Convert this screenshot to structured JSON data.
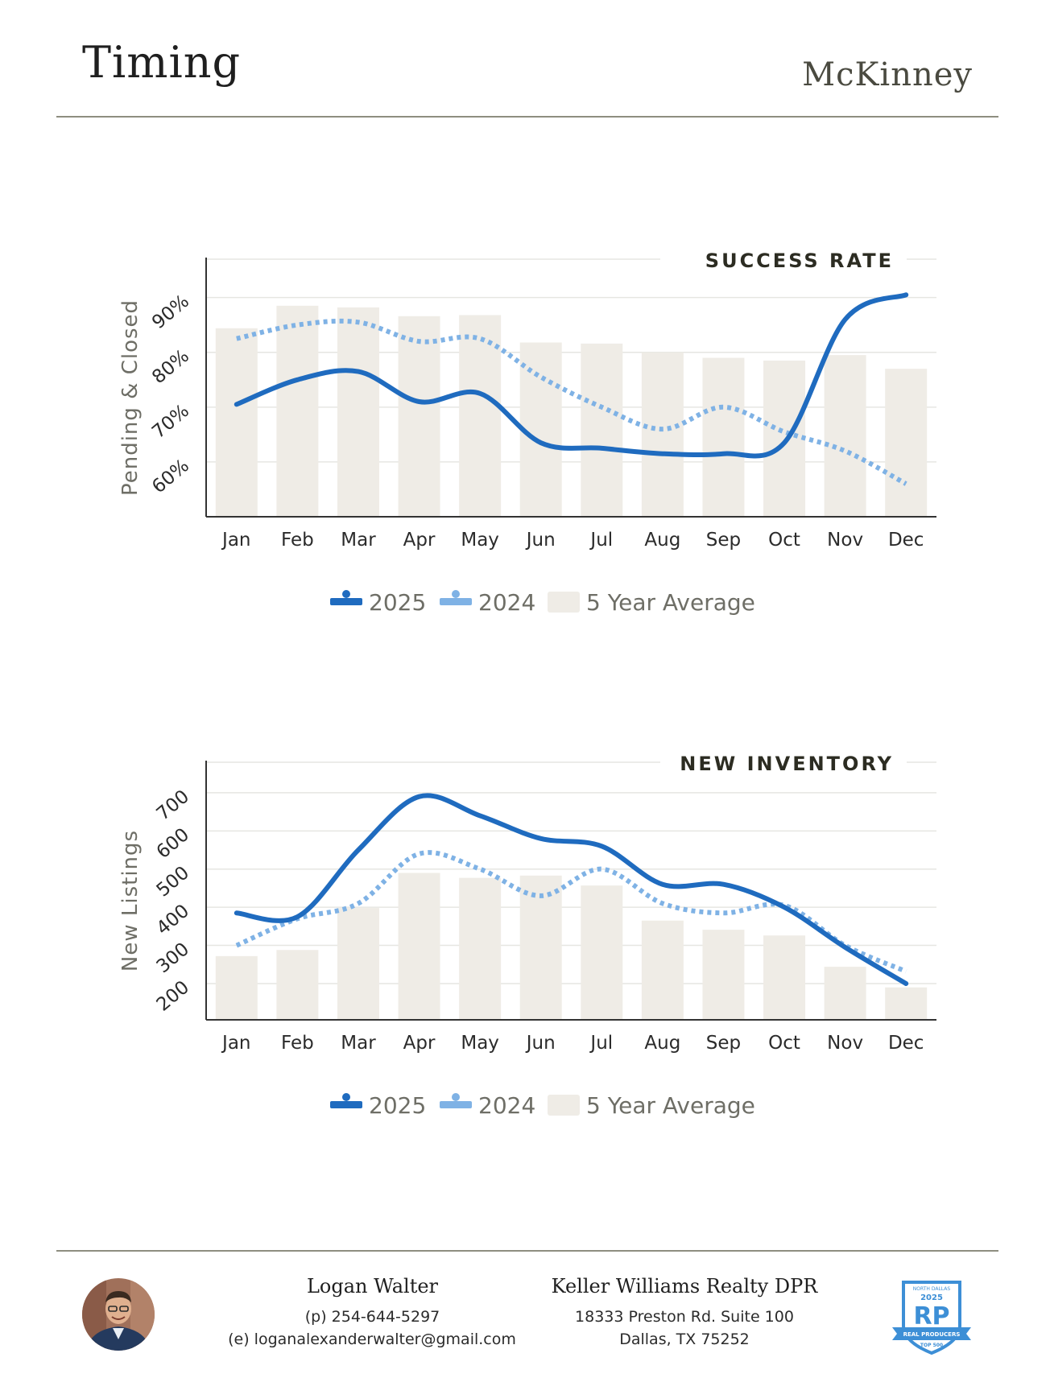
{
  "header": {
    "title": "Timing",
    "city": "McKinney"
  },
  "chart_data": [
    {
      "type": "line",
      "title": "SUCCESS RATE",
      "ylabel": "Pending & Closed",
      "categories": [
        "Jan",
        "Feb",
        "Mar",
        "Apr",
        "May",
        "Jun",
        "Jul",
        "Aug",
        "Sep",
        "Oct",
        "Nov",
        "Dec"
      ],
      "yticks": [
        "60%",
        "70%",
        "80%",
        "90%"
      ],
      "ylim": [
        50,
        97
      ],
      "series": [
        {
          "name": "2025",
          "values": [
            70.5,
            75,
            76.5,
            71,
            72.5,
            63.5,
            62.5,
            61.5,
            61.5,
            63.5,
            86,
            90.5
          ],
          "color": "#1f6bbf"
        },
        {
          "name": "2024",
          "values": [
            82.5,
            85,
            85.5,
            82,
            82.5,
            75.5,
            70,
            66,
            70,
            65.5,
            62,
            56
          ],
          "color": "#7fb2e5"
        },
        {
          "name": "5 Year Average",
          "values": [
            84.4,
            88.5,
            88.2,
            86.6,
            86.8,
            81.8,
            81.6,
            80,
            79,
            78.5,
            79.5,
            77
          ],
          "color": "#efece6"
        }
      ],
      "legend": "bottom-center"
    },
    {
      "type": "line",
      "title": "NEW INVENTORY",
      "ylabel": "New Listings",
      "categories": [
        "Jan",
        "Feb",
        "Mar",
        "Apr",
        "May",
        "Jun",
        "Jul",
        "Aug",
        "Sep",
        "Oct",
        "Nov",
        "Dec"
      ],
      "yticks": [
        "200",
        "300",
        "400",
        "500",
        "600",
        "700"
      ],
      "ylim": [
        105,
        780
      ],
      "series": [
        {
          "name": "2025",
          "values": [
            385,
            375,
            550,
            690,
            640,
            580,
            560,
            460,
            460,
            400,
            295,
            200
          ],
          "color": "#1f6bbf"
        },
        {
          "name": "2024",
          "values": [
            300,
            370,
            410,
            540,
            500,
            430,
            500,
            410,
            385,
            405,
            300,
            232
          ],
          "color": "#7fb2e5"
        },
        {
          "name": "5 Year Average",
          "values": [
            272,
            288,
            398,
            490,
            477,
            483,
            457,
            365,
            341,
            326,
            244,
            190
          ],
          "color": "#efece6"
        }
      ],
      "legend": "bottom-center"
    }
  ],
  "footer": {
    "agent_name": "Logan Walter",
    "phone": "(p) 254-644-5297",
    "email": "(e) loganalexanderwalter@gmail.com",
    "company": "Keller Williams Realty DPR",
    "address1": "18333 Preston Rd. Suite 100",
    "address2": "Dallas, TX 75252",
    "badge_year": "2025",
    "badge_letters": "RP",
    "badge_region": "NORTH DALLAS",
    "badge_caption": "REAL PRODUCERS",
    "badge_rank": "TOP 500"
  }
}
